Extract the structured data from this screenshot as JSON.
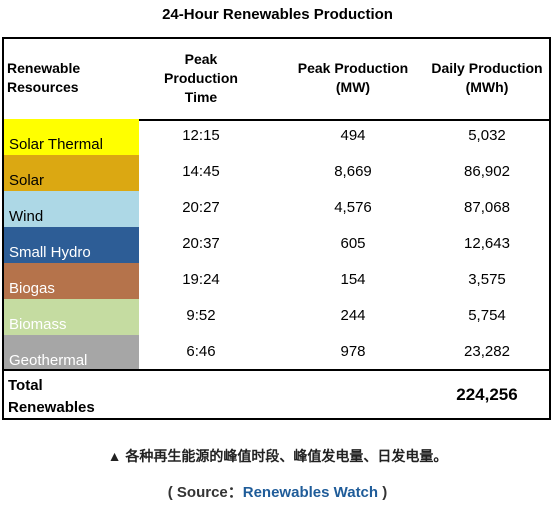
{
  "title": "24-Hour Renewables Production",
  "headers": {
    "resources": "Renewable Resources",
    "peak_time": "Peak Production Time",
    "peak_mw": "Peak Production (MW)",
    "daily_mwh": "Daily Production (MWh)"
  },
  "rows": [
    {
      "name": "Solar Thermal",
      "time": "12:15",
      "peak": "494",
      "daily": "5,032",
      "color": "#ffff00",
      "text_color": "#000000"
    },
    {
      "name": "Solar",
      "time": "14:45",
      "peak": "8,669",
      "daily": "86,902",
      "color": "#dba812",
      "text_color": "#000000"
    },
    {
      "name": "Wind",
      "time": "20:27",
      "peak": "4,576",
      "daily": "87,068",
      "color": "#add8e6",
      "text_color": "#000000"
    },
    {
      "name": "Small Hydro",
      "time": "20:37",
      "peak": "605",
      "daily": "12,643",
      "color": "#2d5d96",
      "text_color": "#ffffff"
    },
    {
      "name": "Biogas",
      "time": "19:24",
      "peak": "154",
      "daily": "3,575",
      "color": "#b5734b",
      "text_color": "#ffffff"
    },
    {
      "name": "Biomass",
      "time": "9:52",
      "peak": "244",
      "daily": "5,754",
      "color": "#c5dca1",
      "text_color": "#ffffff"
    },
    {
      "name": "Geothermal",
      "time": "6:46",
      "peak": "978",
      "daily": "23,282",
      "color": "#a6a6a6",
      "text_color": "#ffffff"
    }
  ],
  "total": {
    "label": "Total Renewables",
    "daily": "224,256"
  },
  "caption": "▲ 各种再生能源的峰值时段、峰值发电量、日发电量。",
  "source": {
    "prefix": "( Source：",
    "name": "Renewables Watch",
    "suffix": " )"
  }
}
